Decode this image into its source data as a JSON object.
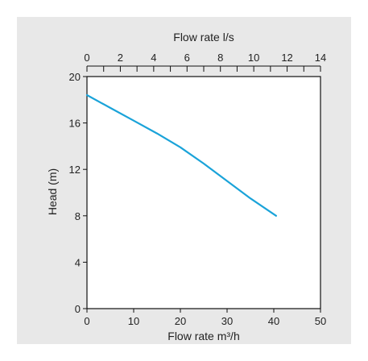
{
  "chart_data": {
    "type": "line",
    "title": "",
    "x_top_label": "Flow rate l/s",
    "x_top_ticks": [
      "0",
      "2",
      "4",
      "6",
      "8",
      "10",
      "12",
      "14"
    ],
    "x_top_range": [
      0,
      14
    ],
    "xlabel": "Flow rate m³/h",
    "x_ticks": [
      "0",
      "10",
      "20",
      "30",
      "40",
      "50"
    ],
    "xlim": [
      0,
      50
    ],
    "ylabel": "Head (m)",
    "y_ticks": [
      "0",
      "4",
      "8",
      "12",
      "16",
      "20"
    ],
    "ylim": [
      0,
      20
    ],
    "grid": true,
    "series": [
      {
        "x": [
          0,
          5,
          10,
          15,
          20,
          25,
          30,
          35,
          40.5
        ],
        "y": [
          18.4,
          17.3,
          16.2,
          15.1,
          13.9,
          12.5,
          11.0,
          9.5,
          8.0
        ],
        "color": "#1aa3d9"
      }
    ]
  }
}
